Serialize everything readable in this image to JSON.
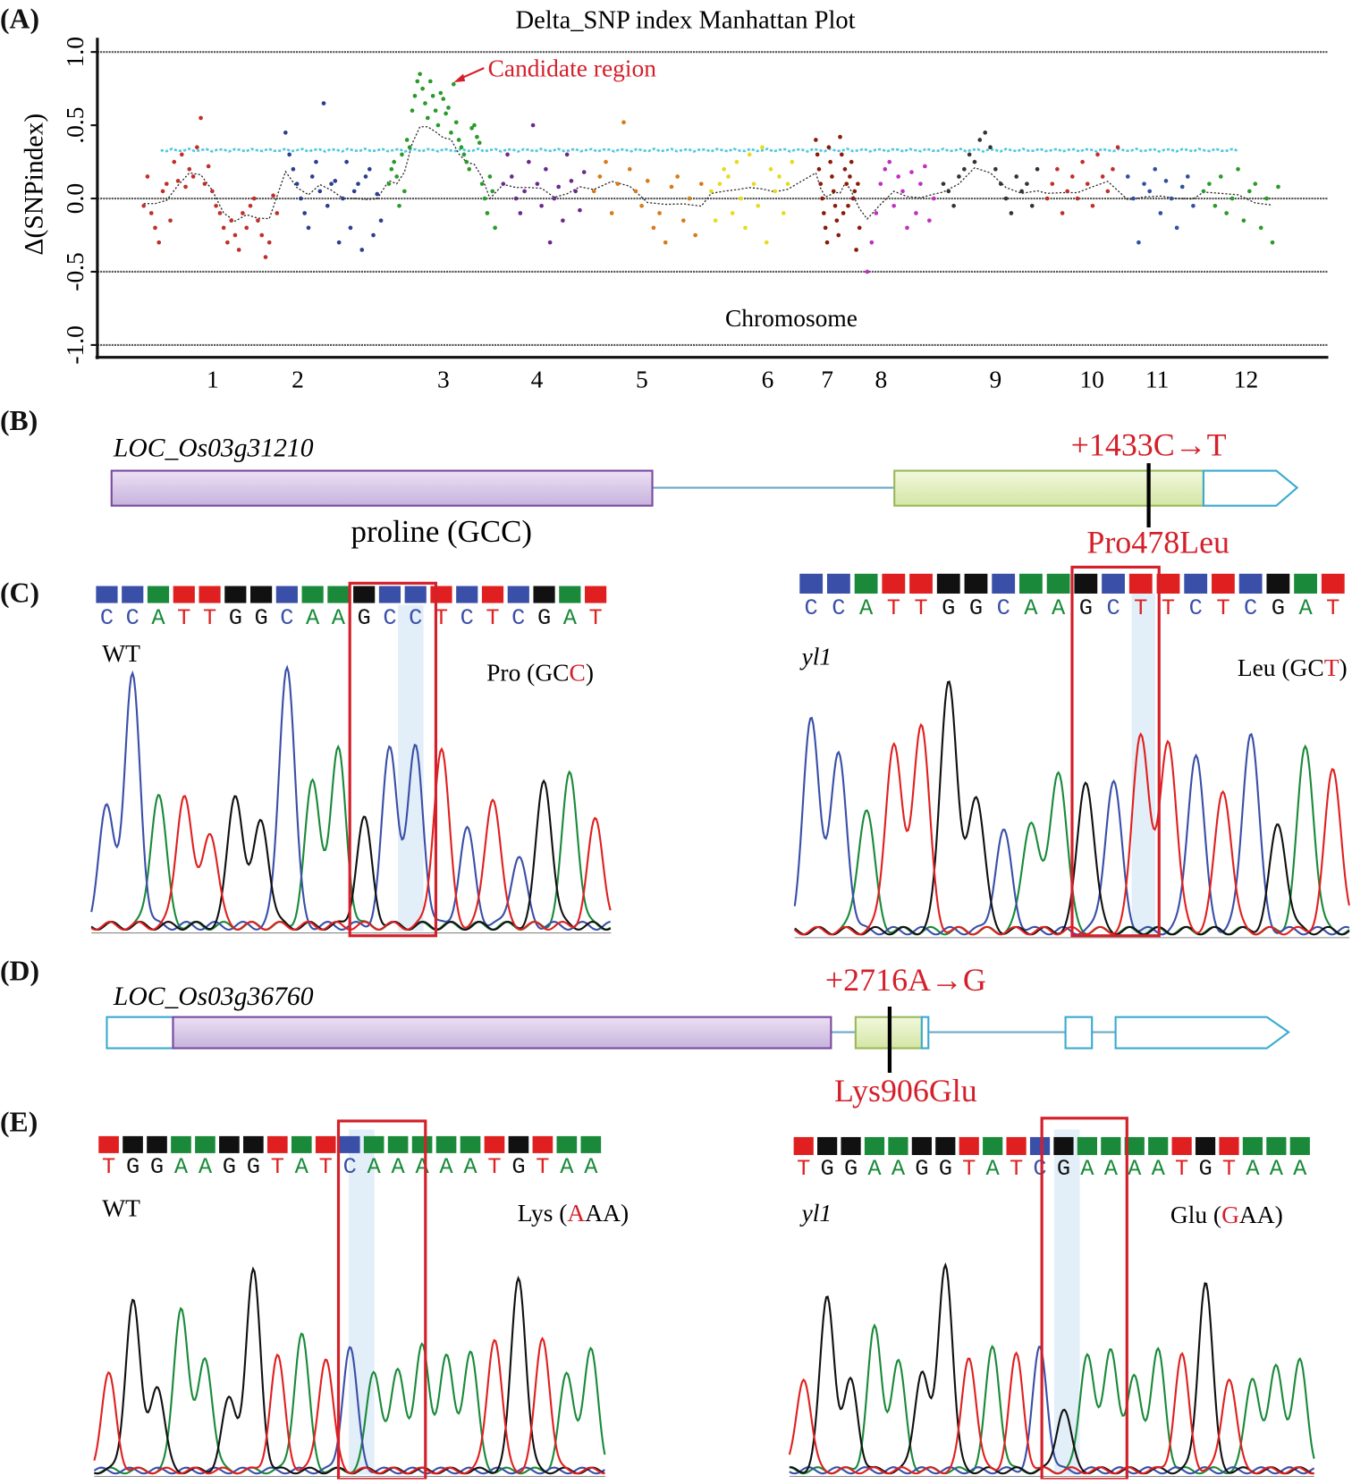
{
  "panels": {
    "a": "(A)",
    "b": "(B)",
    "c": "(C)",
    "d": "(D)",
    "e": "(E)"
  },
  "chart_data": {
    "type": "scatter",
    "title": "Delta_SNP index Manhattan Plot",
    "xlabel": "Chromosome",
    "ylabel": "Δ(SNPindex)",
    "ylim": [
      -1.0,
      1.0
    ],
    "yticks": [
      "1.0",
      ".0.5",
      "0.0",
      "-0.5",
      "-1.0"
    ],
    "ytick_values": [
      1.0,
      0.5,
      0.0,
      -0.5,
      -1.0
    ],
    "reference_lines": [
      1.0,
      0.0,
      -0.5,
      -1.0
    ],
    "threshold": 0.33,
    "threshold_color": "#4fc8e0",
    "annotation": "Candidate region",
    "annotation_color": "#d4202a",
    "grid": false,
    "chromosomes": [
      {
        "label": "1",
        "color": "#c0302a",
        "values": [
          -0.05,
          0.15,
          -0.1,
          -0.2,
          -0.3,
          0.05,
          0.1,
          -0.15,
          0.25,
          0.12,
          0.3,
          0.08,
          0.2,
          0.15,
          0.35,
          0.55,
          0.1,
          0.22,
          0.05,
          -0.05,
          -0.1,
          -0.2,
          -0.3,
          -0.15,
          -0.25,
          -0.35,
          -0.1,
          -0.2,
          -0.05,
          0.0,
          -0.15,
          -0.25,
          -0.4,
          -0.3,
          0.02,
          -0.1
        ]
      },
      {
        "label": "2",
        "color": "#2a3f8f",
        "values": [
          0.45,
          0.3,
          0.2,
          0.1,
          0.0,
          -0.1,
          -0.2,
          0.15,
          0.25,
          0.05,
          0.65,
          -0.05,
          0.1,
          0.12,
          -0.3,
          0.0,
          0.25,
          -0.2,
          0.05,
          0.1,
          -0.35,
          0.15,
          0.2,
          -0.25,
          0.03,
          -0.15
        ]
      },
      {
        "label": "3",
        "color": "#2a9a2a",
        "values": [
          0.1,
          0.2,
          0.25,
          0.15,
          -0.05,
          0.3,
          0.05,
          0.4,
          0.35,
          0.6,
          0.7,
          0.8,
          0.85,
          0.75,
          0.65,
          0.55,
          0.8,
          0.7,
          0.6,
          0.5,
          0.72,
          0.68,
          0.58,
          0.62,
          0.45,
          0.78,
          0.52,
          0.4,
          0.35,
          0.3,
          0.25,
          0.2,
          0.48,
          0.5,
          0.42,
          0.38,
          0.1,
          0.0,
          -0.1,
          0.15,
          0.05,
          -0.2
        ]
      },
      {
        "label": "4",
        "color": "#6a2a8a",
        "values": [
          0.1,
          0.3,
          0.15,
          0.0,
          -0.1,
          0.05,
          0.25,
          0.5,
          0.1,
          -0.05,
          0.2,
          -0.3,
          0.0,
          0.08,
          -0.15,
          0.3,
          0.12,
          0.05,
          -0.08,
          0.18
        ]
      },
      {
        "label": "5",
        "color": "#d87a1a",
        "values": [
          0.05,
          0.15,
          0.25,
          -0.1,
          0.1,
          0.52,
          0.2,
          0.05,
          -0.05,
          0.12,
          -0.2,
          -0.1,
          -0.3,
          0.08,
          0.15,
          -0.15,
          0.0,
          -0.25,
          0.1
        ]
      },
      {
        "label": "6",
        "color": "#e6dc1c",
        "values": [
          0.05,
          -0.15,
          0.1,
          0.2,
          0.15,
          -0.1,
          0.25,
          0.0,
          -0.2,
          0.3,
          0.1,
          -0.05,
          0.35,
          -0.3,
          0.2,
          0.05,
          0.15,
          -0.1,
          0.1,
          0.25
        ]
      },
      {
        "label": "7",
        "color": "#8a1a0a",
        "values": [
          0.4,
          0.3,
          0.2,
          0.1,
          0.0,
          -0.1,
          -0.2,
          -0.3,
          0.35,
          0.25,
          0.15,
          0.05,
          -0.05,
          -0.15,
          -0.25,
          0.42,
          0.3,
          -0.1,
          0.2,
          0.1,
          -0.05,
          0.15,
          0.25,
          0.0,
          0.05,
          -0.35,
          0.1,
          -0.2
        ]
      },
      {
        "label": "8",
        "color": "#c030c0",
        "values": [
          -0.5,
          -0.3,
          -0.1,
          0.1,
          0.2,
          0.25,
          -0.05,
          0.15,
          0.05,
          -0.2,
          0.18,
          -0.1,
          0.1,
          0.22,
          -0.15,
          0.0
        ]
      },
      {
        "label": "9",
        "color": "#333333",
        "values": [
          0.1,
          0.05,
          -0.05,
          0.15,
          0.2,
          0.3,
          0.25,
          0.4,
          0.45,
          0.35,
          0.2,
          0.1,
          0.0,
          -0.1,
          0.15,
          0.05,
          0.1,
          -0.05,
          0.2
        ]
      },
      {
        "label": "10",
        "color": "#c0302a",
        "values": [
          0.0,
          0.1,
          0.2,
          -0.1,
          0.05,
          0.15,
          0.0,
          0.25,
          0.1,
          -0.05,
          0.3,
          0.15,
          0.05,
          0.2,
          0.35
        ]
      },
      {
        "label": "11",
        "color": "#3050a0",
        "values": [
          0.15,
          0.0,
          -0.3,
          0.1,
          0.05,
          0.2,
          -0.1,
          0.12,
          0.0,
          -0.2,
          0.08,
          0.15,
          -0.05
        ]
      },
      {
        "label": "12",
        "color": "#2a9a2a",
        "values": [
          0.05,
          0.1,
          -0.05,
          0.15,
          -0.1,
          0.0,
          0.2,
          -0.15,
          0.05,
          0.1,
          -0.2,
          0.0,
          -0.3,
          0.08
        ]
      }
    ]
  },
  "gene_b": {
    "name": "LOC_Os03g31210",
    "mutation": "+1433C→T",
    "aa_change": "Pro478Leu",
    "codon_label": "proline (GCC)"
  },
  "gene_d": {
    "name": "LOC_Os03g36760",
    "mutation": "+2716A→G",
    "aa_change": "Lys906Glu"
  },
  "base_colors": {
    "A": "#1a8a3a",
    "C": "#3a4fa8",
    "G": "#111111",
    "T": "#e02020"
  },
  "traces": {
    "c_wt": {
      "label": "WT",
      "sequence": "CCATTGGCAAGCCTCTCGAT",
      "codon": {
        "pre": "Pro (GC",
        "mut": "C",
        "post": ")"
      },
      "peak_heights": [
        0.45,
        0.94,
        0.5,
        0.5,
        0.36,
        0.5,
        0.4,
        0.99,
        0.54,
        0.66,
        0.4,
        0.67,
        0.67,
        0.67,
        0.36,
        0.49,
        0.26,
        0.55,
        0.58,
        0.4
      ]
    },
    "c_mut": {
      "label": "yl1",
      "sequence": "CCATTGGCAAGCTTCTCGAT",
      "codon": {
        "pre": "Leu (GC",
        "mut": "T",
        "post": ")"
      },
      "peak_heights": [
        0.83,
        0.69,
        0.48,
        0.74,
        0.82,
        1.0,
        0.54,
        0.39,
        0.44,
        0.64,
        0.6,
        0.59,
        0.79,
        0.76,
        0.7,
        0.56,
        0.79,
        0.42,
        0.73,
        0.64
      ]
    },
    "e_wt": {
      "label": "WT",
      "sequence": "TGGAAGGTATCAAAAATGTAA",
      "codon": {
        "pre": "Lys (",
        "mut": "A",
        "post": "AA)"
      },
      "peak_heights": [
        0.48,
        0.86,
        0.43,
        0.83,
        0.57,
        0.36,
        1.0,
        0.57,
        0.69,
        0.57,
        0.62,
        0.5,
        0.5,
        0.62,
        0.57,
        0.6,
        0.67,
        0.98,
        0.67,
        0.48,
        0.6
      ]
    },
    "e_mut": {
      "label": "yl1",
      "sequence": "TGGAAGGTATCGAAAATGTAAA",
      "codon": {
        "pre": "Glu (",
        "mut": "G",
        "post": "AA)"
      },
      "peak_heights": [
        0.45,
        0.84,
        0.43,
        0.68,
        0.52,
        0.48,
        1.0,
        0.55,
        0.59,
        0.55,
        0.59,
        0.3,
        0.57,
        0.59,
        0.45,
        0.57,
        0.55,
        0.91,
        0.45,
        0.45,
        0.5,
        0.52
      ]
    }
  }
}
